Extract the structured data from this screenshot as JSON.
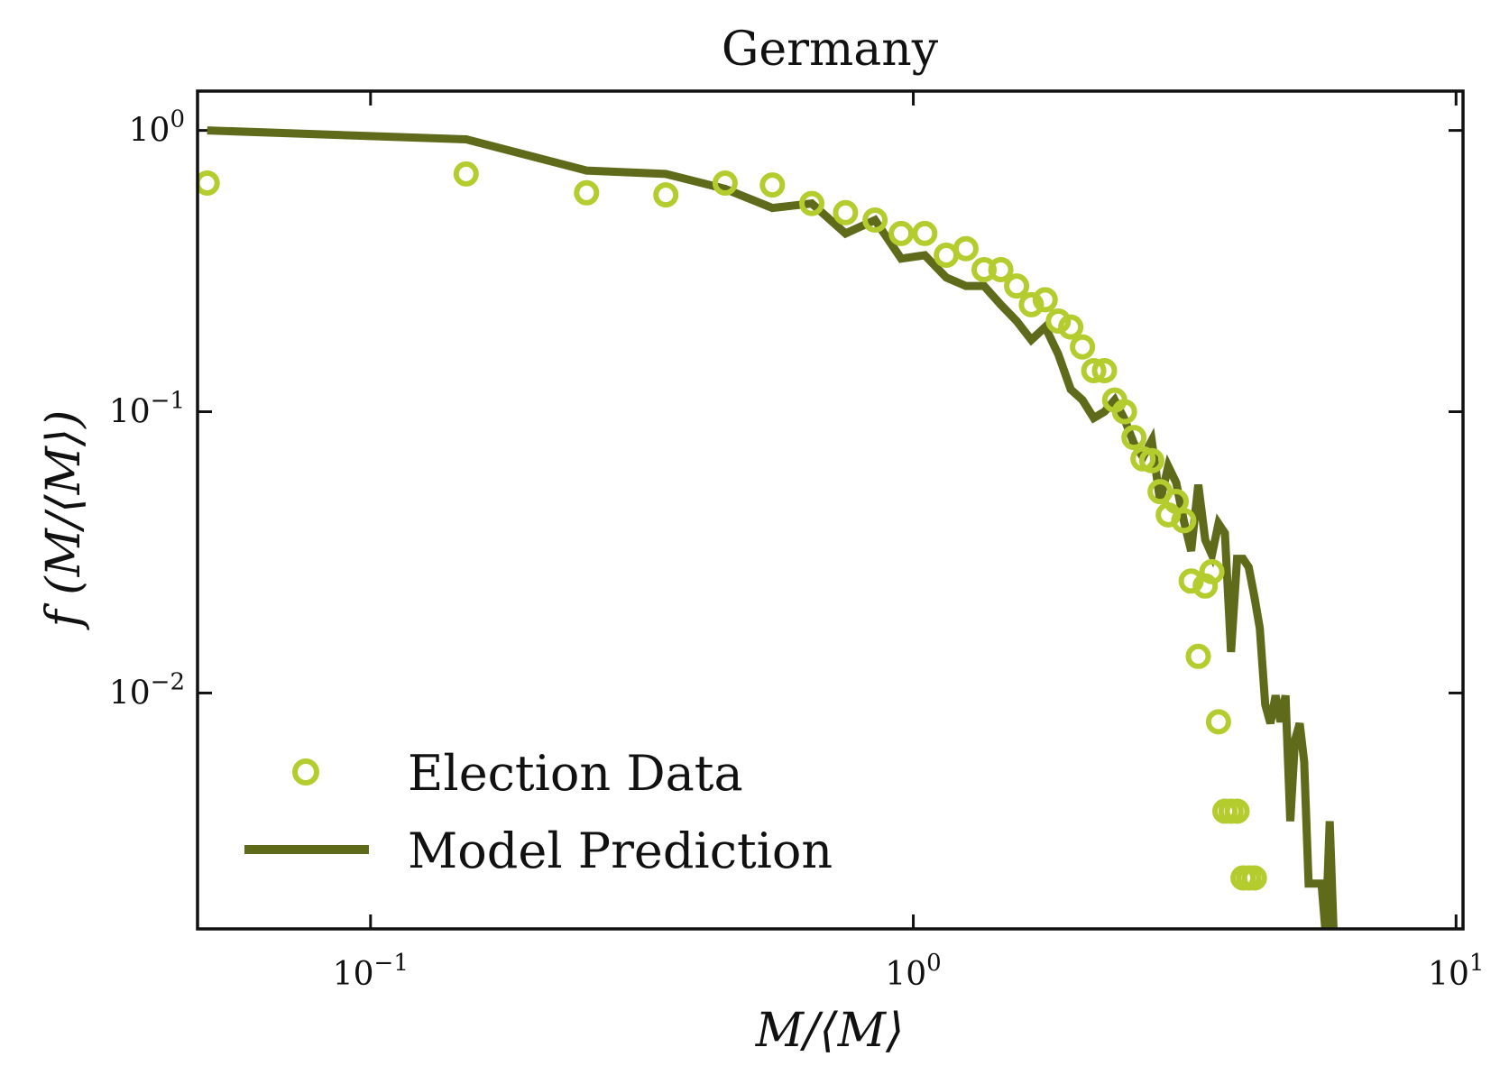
{
  "chart_data": {
    "type": "scatter",
    "title": "Germany",
    "xlabel": "M/⟨M⟩",
    "ylabel": "f (M/⟨M⟩)",
    "xscale": "log",
    "yscale": "log",
    "xlim": [
      0.048,
      10.3
    ],
    "ylim": [
      0.00145,
      1.38
    ],
    "grid": false,
    "legend_position": "lower-left",
    "x_ticks": [
      {
        "value": 0.1,
        "base": "10",
        "exp": "−1"
      },
      {
        "value": 1,
        "base": "10",
        "exp": "0"
      },
      {
        "value": 10,
        "base": "10",
        "exp": "1"
      }
    ],
    "y_ticks": [
      {
        "value": 1,
        "base": "10",
        "exp": "0"
      },
      {
        "value": 0.1,
        "base": "10",
        "exp": "−1"
      },
      {
        "value": 0.01,
        "base": "10",
        "exp": "−2"
      }
    ],
    "series": [
      {
        "name": "Election Data",
        "kind": "scatter",
        "marker": "open-circle",
        "color": "#b5cc2e",
        "points": [
          [
            0.05,
            0.65
          ],
          [
            0.15,
            0.7
          ],
          [
            0.25,
            0.6
          ],
          [
            0.35,
            0.59
          ],
          [
            0.45,
            0.65
          ],
          [
            0.55,
            0.64
          ],
          [
            0.65,
            0.55
          ],
          [
            0.75,
            0.51
          ],
          [
            0.85,
            0.48
          ],
          [
            0.95,
            0.43
          ],
          [
            1.05,
            0.43
          ],
          [
            1.15,
            0.36
          ],
          [
            1.25,
            0.38
          ],
          [
            1.35,
            0.32
          ],
          [
            1.45,
            0.32
          ],
          [
            1.55,
            0.28
          ],
          [
            1.65,
            0.24
          ],
          [
            1.75,
            0.25
          ],
          [
            1.85,
            0.21
          ],
          [
            1.95,
            0.2
          ],
          [
            2.05,
            0.17
          ],
          [
            2.15,
            0.14
          ],
          [
            2.25,
            0.14
          ],
          [
            2.35,
            0.11
          ],
          [
            2.45,
            0.1
          ],
          [
            2.55,
            0.081
          ],
          [
            2.65,
            0.068
          ],
          [
            2.75,
            0.067
          ],
          [
            2.85,
            0.052
          ],
          [
            2.95,
            0.043
          ],
          [
            3.05,
            0.048
          ],
          [
            3.15,
            0.041
          ],
          [
            3.25,
            0.025
          ],
          [
            3.35,
            0.0135
          ],
          [
            3.45,
            0.024
          ],
          [
            3.55,
            0.027
          ],
          [
            3.65,
            0.0079
          ],
          [
            3.75,
            0.0038
          ],
          [
            3.85,
            0.0038
          ],
          [
            3.95,
            0.0038
          ],
          [
            4.05,
            0.0022
          ],
          [
            4.15,
            0.0022
          ],
          [
            4.25,
            0.0022
          ]
        ]
      },
      {
        "name": "Model Prediction",
        "kind": "line",
        "color": "#5f6b1b",
        "points": [
          [
            0.05,
            1.0
          ],
          [
            0.15,
            0.93
          ],
          [
            0.25,
            0.72
          ],
          [
            0.35,
            0.7
          ],
          [
            0.45,
            0.62
          ],
          [
            0.55,
            0.53
          ],
          [
            0.65,
            0.55
          ],
          [
            0.75,
            0.43
          ],
          [
            0.85,
            0.48
          ],
          [
            0.95,
            0.35
          ],
          [
            1.05,
            0.36
          ],
          [
            1.15,
            0.3
          ],
          [
            1.25,
            0.28
          ],
          [
            1.35,
            0.28
          ],
          [
            1.45,
            0.24
          ],
          [
            1.55,
            0.21
          ],
          [
            1.65,
            0.18
          ],
          [
            1.75,
            0.2
          ],
          [
            1.85,
            0.16
          ],
          [
            1.95,
            0.12
          ],
          [
            2.05,
            0.11
          ],
          [
            2.15,
            0.095
          ],
          [
            2.25,
            0.1
          ],
          [
            2.35,
            0.11
          ],
          [
            2.45,
            0.094
          ],
          [
            2.55,
            0.077
          ],
          [
            2.65,
            0.069
          ],
          [
            2.75,
            0.079
          ],
          [
            2.85,
            0.048
          ],
          [
            2.95,
            0.064
          ],
          [
            3.05,
            0.056
          ],
          [
            3.15,
            0.041
          ],
          [
            3.25,
            0.032
          ],
          [
            3.35,
            0.055
          ],
          [
            3.45,
            0.035
          ],
          [
            3.55,
            0.031
          ],
          [
            3.65,
            0.04
          ],
          [
            3.75,
            0.037
          ],
          [
            3.85,
            0.014
          ],
          [
            3.95,
            0.03
          ],
          [
            4.05,
            0.03
          ],
          [
            4.15,
            0.028
          ],
          [
            4.25,
            0.022
          ],
          [
            4.35,
            0.017
          ],
          [
            4.45,
            0.0091
          ],
          [
            4.55,
            0.0078
          ],
          [
            4.65,
            0.0098
          ],
          [
            4.75,
            0.0079
          ],
          [
            4.85,
            0.0098
          ],
          [
            4.95,
            0.0035
          ],
          [
            5.05,
            0.0068
          ],
          [
            5.15,
            0.0078
          ],
          [
            5.25,
            0.0057
          ],
          [
            5.35,
            0.0021
          ],
          [
            5.45,
            0.0021
          ],
          [
            5.55,
            0.0021
          ],
          [
            5.65,
            0.0021
          ],
          [
            5.75,
            0.0014
          ],
          [
            5.85,
            0.0035
          ],
          [
            5.95,
            0.0014
          ]
        ]
      }
    ]
  }
}
